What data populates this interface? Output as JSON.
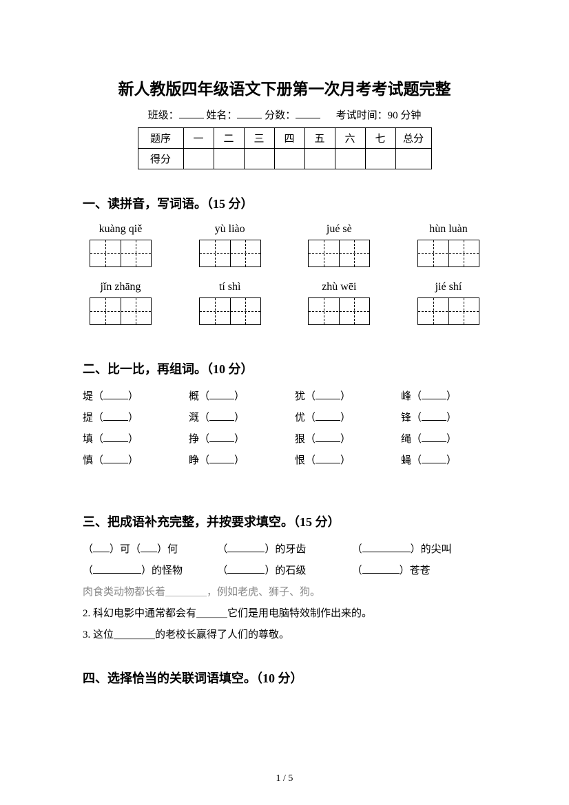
{
  "title": "新人教版四年级语文下册第一次月考考试题完整",
  "info": {
    "class_label": "班级：",
    "name_label": "姓名：",
    "score_label": "分数：",
    "time_label": "考试时间：90 分钟"
  },
  "score_table": {
    "row_header": "题序",
    "cols": [
      "一",
      "二",
      "三",
      "四",
      "五",
      "六",
      "七"
    ],
    "total": "总分",
    "score_row_header": "得分"
  },
  "section1": {
    "heading": "一、读拼音，写词语。（15 分）",
    "row1": [
      "kuàng qiě",
      "yù liào",
      "jué sè",
      "hùn luàn"
    ],
    "row2": [
      "jǐn zhāng",
      "tí shì",
      "zhù wēi",
      "jié shí"
    ]
  },
  "section2": {
    "heading": "二、比一比，再组词。（10 分）",
    "cols": [
      [
        "堤",
        "提",
        "填",
        "慎"
      ],
      [
        "概",
        "溉",
        "挣",
        "睁"
      ],
      [
        "犹",
        "优",
        "狠",
        "恨"
      ],
      [
        "峰",
        "锋",
        "绳",
        "蝇"
      ]
    ]
  },
  "section3": {
    "heading": "三、把成语补充完整，并按要求填空。（15 分）",
    "row1": [
      {
        "prefix": "（",
        "mid": "）可（",
        "suffix": "）何",
        "btype": "short"
      },
      {
        "prefix": "（",
        "suffix": "）的牙齿",
        "btype": "med"
      },
      {
        "prefix": "（",
        "suffix": "）的尖叫",
        "btype": "long"
      }
    ],
    "row2": [
      {
        "prefix": "（",
        "suffix": "）的怪物",
        "btype": "long"
      },
      {
        "prefix": "（",
        "suffix": "）的石级",
        "btype": "med"
      },
      {
        "prefix": "（",
        "suffix": "）苍苍",
        "btype": "med"
      }
    ],
    "sent1": "肉食类动物都长着＿＿＿＿，例如老虎、狮子、狗。",
    "sent2": "2. 科幻电影中通常都会有＿＿＿它们是用电脑特效制作出来的。",
    "sent3": "3. 这位＿＿＿＿的老校长赢得了人们的尊敬。"
  },
  "section4": {
    "heading": "四、选择恰当的关联词语填空。（10 分）"
  },
  "page_num": "1 / 5",
  "colors": {
    "text": "#000000",
    "grey_text": "#888888",
    "background": "#ffffff"
  }
}
